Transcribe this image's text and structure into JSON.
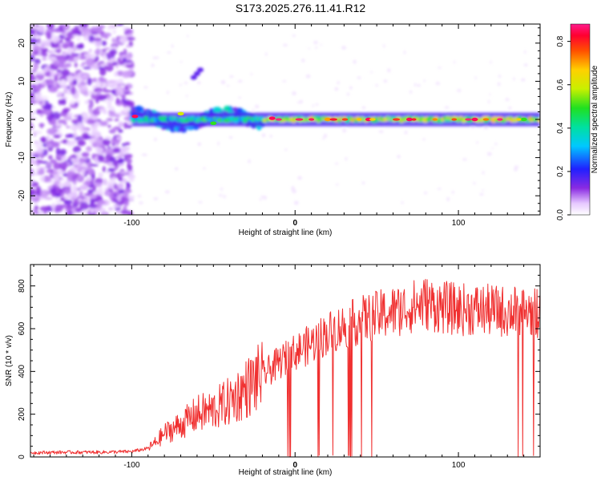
{
  "title": "S173.2025.276.11.41.R12",
  "chart_data": [
    {
      "type": "heatmap",
      "title": "S173.2025.276.11.41.R12",
      "xlabel": "Height of straight line (km)",
      "ylabel": "Frequency (Hz)",
      "xlim": [
        -162,
        150
      ],
      "ylim": [
        -25,
        25
      ],
      "x_ticks": [
        "-100",
        "0",
        "100"
      ],
      "y_ticks": [
        "-20",
        "-10",
        "0",
        "10",
        "20"
      ],
      "colorbar": {
        "label": "Normalized spectral amplitude",
        "range": [
          0,
          0.88
        ],
        "ticks": [
          "0.0",
          "0.2",
          "0.4",
          "0.6",
          "0.8"
        ]
      },
      "regions": [
        {
          "x_range": [
            -162,
            -100
          ],
          "frequency_range": [
            -25,
            25
          ],
          "amplitude": "low noise (0.0-0.1)"
        },
        {
          "x_range": [
            -100,
            -20
          ],
          "frequency_range": [
            -8,
            5
          ],
          "amplitude": "moderate (0.1-0.5)"
        },
        {
          "x_range": [
            -20,
            150
          ],
          "frequency_range": [
            -1,
            1
          ],
          "amplitude": "high (0.4-0.88), centered at 0 Hz"
        }
      ],
      "line_points": [
        {
          "x": -98,
          "f": 0.8,
          "amp": 0.85
        },
        {
          "x": -70,
          "f": 1.5,
          "amp": 0.6
        },
        {
          "x": -50,
          "f": -1,
          "amp": 0.5
        },
        {
          "x": -14,
          "f": 0.3,
          "amp": 0.85
        },
        {
          "x": 20,
          "f": 0,
          "amp": 0.7
        },
        {
          "x": 45,
          "f": 0,
          "amp": 0.85
        },
        {
          "x": 70,
          "f": 0,
          "amp": 0.85
        },
        {
          "x": 110,
          "f": 0,
          "amp": 0.85
        },
        {
          "x": 140,
          "f": 0,
          "amp": 0.5
        }
      ]
    },
    {
      "type": "line",
      "xlabel": "Height of straight line (km)",
      "ylabel": "SNR (10 * v/v)",
      "xlim": [
        -162,
        150
      ],
      "ylim": [
        0,
        900
      ],
      "x_ticks": [
        "-100",
        "0",
        "100"
      ],
      "y_ticks": [
        "0",
        "200",
        "400",
        "600",
        "800"
      ],
      "color": "#f03030",
      "series": [
        {
          "x": [
            -162,
            -140,
            -120,
            -100,
            -90,
            -85,
            -80,
            -70,
            -60,
            -50,
            -40,
            -30,
            -20,
            -10,
            0,
            10,
            20,
            30,
            40,
            50,
            60,
            70,
            80,
            90,
            100,
            110,
            120,
            130,
            140,
            150
          ],
          "values": [
            20,
            22,
            22,
            25,
            40,
            70,
            110,
            150,
            200,
            220,
            260,
            320,
            380,
            440,
            490,
            530,
            580,
            610,
            640,
            660,
            680,
            700,
            720,
            700,
            690,
            690,
            685,
            680,
            680,
            675
          ]
        }
      ]
    }
  ]
}
